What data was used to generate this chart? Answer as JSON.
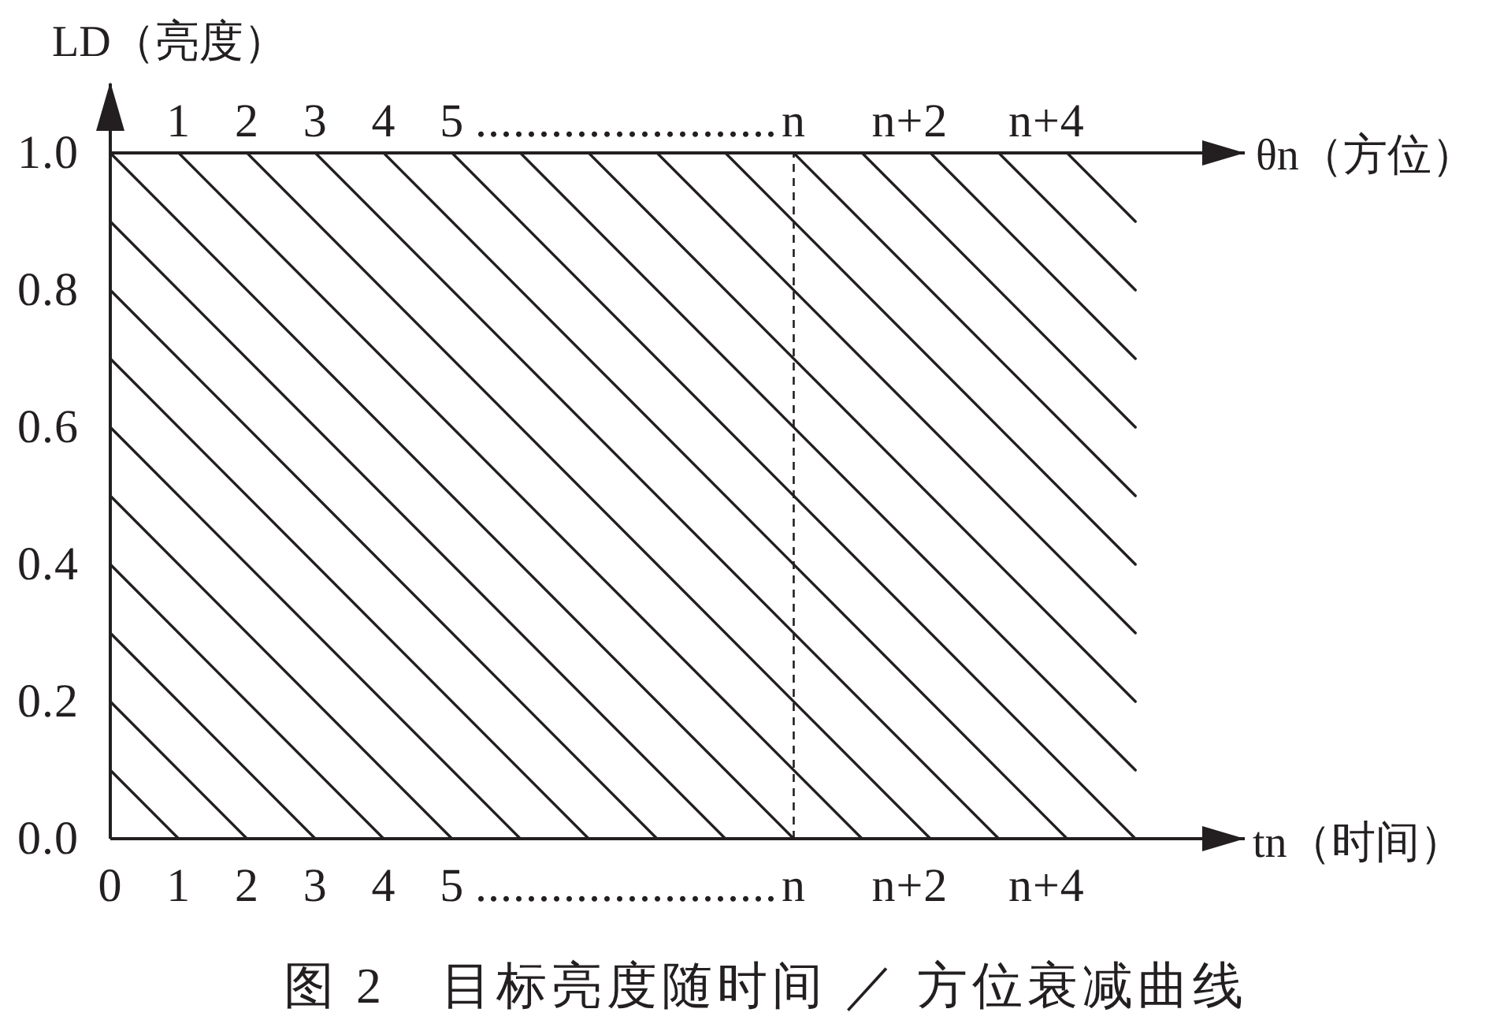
{
  "chart_data": {
    "type": "line",
    "title": "图 2　目标亮度随时间 ／ 方位衰减曲线",
    "xlabel": "tn（时间）",
    "x2label": "θn（方位）",
    "ylabel": "LD（亮度）",
    "xlim": [
      0,
      16.6
    ],
    "xticks": [
      0,
      1,
      2,
      3,
      4,
      5,
      {
        "value": 7.55,
        "label": "........................"
      },
      {
        "value": 10,
        "label": "n"
      },
      {
        "value": 11.7,
        "label": "n+2"
      },
      {
        "value": 13.7,
        "label": "n+4"
      }
    ],
    "x2lim": [
      0,
      16.6
    ],
    "x2ticks": [
      1,
      2,
      3,
      4,
      5,
      {
        "value": 7.55,
        "label": "........................"
      },
      {
        "value": 10,
        "label": "n"
      },
      {
        "value": 11.7,
        "label": "n+2"
      },
      {
        "value": 13.7,
        "label": "n+4"
      }
    ],
    "ylim": [
      0,
      1
    ],
    "yticks": [
      {
        "value": 0,
        "label": "0.0"
      },
      0.2,
      0.4,
      0.6,
      0.8,
      {
        "value": 1,
        "label": "1.0"
      }
    ],
    "line_style": "solid",
    "series": [
      {
        "color": "#231f20",
        "x": [
          0,
          1
        ],
        "values": [
          0.1,
          0
        ]
      },
      {
        "color": "#231f20",
        "x": [
          0,
          2
        ],
        "values": [
          0.2,
          0
        ]
      },
      {
        "color": "#231f20",
        "x": [
          0,
          3
        ],
        "values": [
          0.3,
          0
        ]
      },
      {
        "color": "#231f20",
        "x": [
          0,
          4
        ],
        "values": [
          0.4,
          0
        ]
      },
      {
        "color": "#231f20",
        "x": [
          0,
          5
        ],
        "values": [
          0.5,
          0
        ]
      },
      {
        "color": "#231f20",
        "x": [
          0,
          6
        ],
        "values": [
          0.6,
          0
        ]
      },
      {
        "color": "#231f20",
        "x": [
          0,
          7
        ],
        "values": [
          0.7,
          0
        ]
      },
      {
        "color": "#231f20",
        "x": [
          0,
          8
        ],
        "values": [
          0.8,
          0
        ]
      },
      {
        "color": "#231f20",
        "x": [
          0,
          9
        ],
        "values": [
          0.9,
          0
        ]
      },
      {
        "color": "#231f20",
        "x": [
          0,
          10
        ],
        "values": [
          1,
          0
        ]
      },
      {
        "color": "#231f20",
        "x": [
          1,
          11
        ],
        "values": [
          1,
          0
        ]
      },
      {
        "color": "#231f20",
        "x": [
          2,
          12
        ],
        "values": [
          1,
          0
        ]
      },
      {
        "color": "#231f20",
        "x": [
          3,
          13
        ],
        "values": [
          1,
          0
        ]
      },
      {
        "color": "#231f20",
        "x": [
          4,
          14
        ],
        "values": [
          1,
          0
        ]
      },
      {
        "color": "#231f20",
        "x": [
          5,
          15
        ],
        "values": [
          1,
          0
        ]
      },
      {
        "color": "#231f20",
        "x": [
          6,
          15
        ],
        "values": [
          1,
          0.1
        ]
      },
      {
        "color": "#231f20",
        "x": [
          7,
          15
        ],
        "values": [
          1,
          0.2
        ]
      },
      {
        "color": "#231f20",
        "x": [
          8,
          15
        ],
        "values": [
          1,
          0.3
        ]
      },
      {
        "color": "#231f20",
        "x": [
          9,
          15
        ],
        "values": [
          1,
          0.4
        ]
      },
      {
        "color": "#231f20",
        "x": [
          10,
          15
        ],
        "values": [
          1,
          0.5
        ]
      },
      {
        "color": "#231f20",
        "x": [
          11,
          15
        ],
        "values": [
          1,
          0.6
        ]
      },
      {
        "color": "#231f20",
        "x": [
          12,
          15
        ],
        "values": [
          1,
          0.7
        ]
      },
      {
        "color": "#231f20",
        "x": [
          13,
          15
        ],
        "values": [
          1,
          0.8
        ]
      },
      {
        "color": "#231f20",
        "x": [
          14,
          15
        ],
        "values": [
          1,
          0.9
        ]
      }
    ],
    "ref_lines": [
      {
        "axis": "x",
        "value": 10,
        "line_style": "dashed",
        "color": "#231f20"
      }
    ]
  }
}
